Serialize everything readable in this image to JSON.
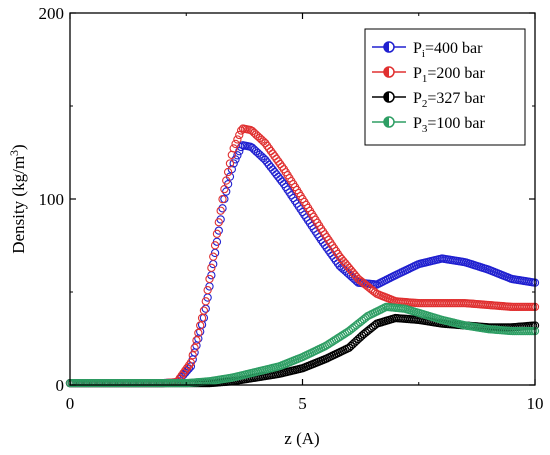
{
  "chart_data": {
    "type": "scatter",
    "xlabel": "z (A)",
    "ylabel_main": "Density (kg/m",
    "ylabel_sup": "3",
    "ylabel_end": ")",
    "xlim": [
      0,
      10
    ],
    "ylim": [
      0,
      200
    ],
    "x_ticks": [
      0,
      5,
      10
    ],
    "y_ticks": [
      0,
      100,
      200
    ],
    "x_tick_labels": [
      "0",
      "5",
      "10"
    ],
    "y_tick_labels": [
      "0",
      "100",
      "200"
    ],
    "grid": false,
    "legend_position": "top-right",
    "marker": "open-circle",
    "series": [
      {
        "legend_main": "P",
        "legend_sub": "i",
        "legend_rest": "=400 bar",
        "color": "#2020d0",
        "points": [
          [
            0,
            1
          ],
          [
            1,
            1
          ],
          [
            2,
            1
          ],
          [
            2.3,
            1.5
          ],
          [
            2.6,
            10
          ],
          [
            2.9,
            38
          ],
          [
            3.1,
            68
          ],
          [
            3.3,
            98
          ],
          [
            3.5,
            118
          ],
          [
            3.7,
            129
          ],
          [
            3.9,
            128
          ],
          [
            4.2,
            121
          ],
          [
            4.6,
            108
          ],
          [
            5.0,
            93
          ],
          [
            5.4,
            78
          ],
          [
            5.8,
            64
          ],
          [
            6.2,
            55
          ],
          [
            6.6,
            54
          ],
          [
            7.0,
            59
          ],
          [
            7.5,
            65
          ],
          [
            8.0,
            68
          ],
          [
            8.5,
            66
          ],
          [
            9.0,
            62
          ],
          [
            9.5,
            57
          ],
          [
            10,
            55
          ]
        ]
      },
      {
        "legend_main": "P",
        "legend_sub": "1",
        "legend_rest": "=200 bar",
        "color": "#e03030",
        "points": [
          [
            0,
            1
          ],
          [
            1,
            1
          ],
          [
            2,
            1
          ],
          [
            2.3,
            1.5
          ],
          [
            2.6,
            12
          ],
          [
            2.9,
            42
          ],
          [
            3.1,
            72
          ],
          [
            3.3,
            103
          ],
          [
            3.5,
            126
          ],
          [
            3.7,
            138
          ],
          [
            3.9,
            137
          ],
          [
            4.2,
            130
          ],
          [
            4.6,
            116
          ],
          [
            5.0,
            100
          ],
          [
            5.4,
            84
          ],
          [
            5.8,
            69
          ],
          [
            6.2,
            57
          ],
          [
            6.6,
            49
          ],
          [
            7.0,
            45
          ],
          [
            7.5,
            44
          ],
          [
            8.0,
            44
          ],
          [
            8.5,
            44
          ],
          [
            9.0,
            43
          ],
          [
            9.5,
            42
          ],
          [
            10,
            42
          ]
        ]
      },
      {
        "legend_main": "P",
        "legend_sub": "2",
        "legend_rest": "=327 bar",
        "color": "#000000",
        "points": [
          [
            0,
            1
          ],
          [
            1,
            1
          ],
          [
            2,
            1
          ],
          [
            3,
            1
          ],
          [
            3.5,
            2
          ],
          [
            4,
            4
          ],
          [
            4.5,
            6
          ],
          [
            5,
            9
          ],
          [
            5.5,
            14
          ],
          [
            6,
            20
          ],
          [
            6.3,
            27
          ],
          [
            6.6,
            33
          ],
          [
            7,
            36
          ],
          [
            7.5,
            35
          ],
          [
            8,
            33
          ],
          [
            8.5,
            32
          ],
          [
            9,
            31
          ],
          [
            9.5,
            31
          ],
          [
            10,
            32
          ]
        ]
      },
      {
        "legend_main": "P",
        "legend_sub": "3",
        "legend_rest": "=100 bar",
        "color": "#2e9e64",
        "points": [
          [
            0,
            1
          ],
          [
            1,
            1
          ],
          [
            2,
            1
          ],
          [
            2.5,
            1
          ],
          [
            3,
            2
          ],
          [
            3.5,
            4
          ],
          [
            4,
            7
          ],
          [
            4.5,
            10
          ],
          [
            5,
            15
          ],
          [
            5.5,
            21
          ],
          [
            6,
            29
          ],
          [
            6.4,
            37
          ],
          [
            6.8,
            42
          ],
          [
            7.2,
            41
          ],
          [
            7.6,
            38
          ],
          [
            8,
            35
          ],
          [
            8.5,
            32
          ],
          [
            9,
            30
          ],
          [
            9.5,
            29
          ],
          [
            10,
            29
          ]
        ]
      }
    ]
  }
}
